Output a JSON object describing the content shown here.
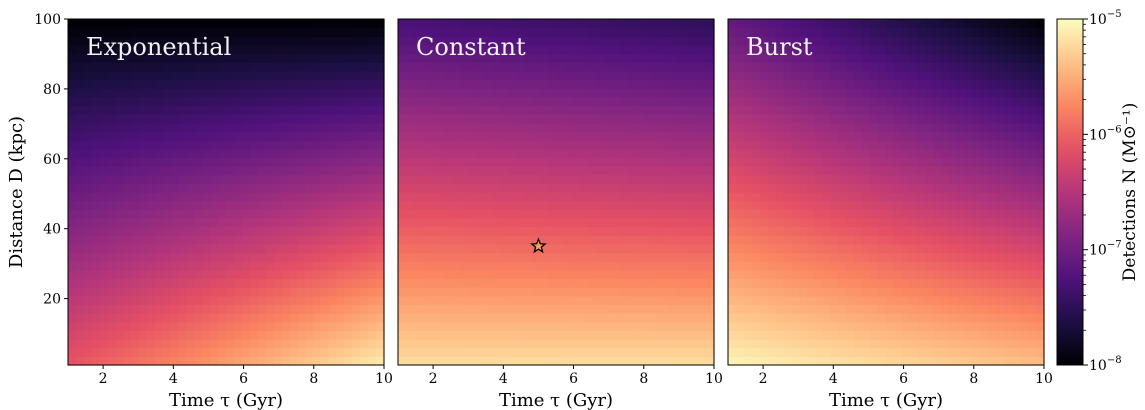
{
  "chart_data": [
    {
      "type": "heatmap",
      "title": "Exponential",
      "xlabel": "Time τ (Gyr)",
      "ylabel": "Distance D (kpc)",
      "xlim": [
        1,
        10
      ],
      "ylim": [
        1,
        100
      ],
      "xticks": [
        2,
        4,
        6,
        8,
        10
      ],
      "yticks": [
        20,
        40,
        60,
        80,
        100
      ],
      "log10_detections_corners": {
        "bottom_left": -6.1,
        "bottom_right": -5.1,
        "top_left": -8.0,
        "top_right": -8.0
      },
      "markers": []
    },
    {
      "type": "heatmap",
      "title": "Constant",
      "xlabel": "Time τ (Gyr)",
      "xlim": [
        1,
        10
      ],
      "ylim": [
        1,
        100
      ],
      "xticks": [
        2,
        4,
        6,
        8,
        10
      ],
      "log10_detections_corners": {
        "bottom_left": -5.2,
        "bottom_right": -5.2,
        "top_left": -7.3,
        "top_right": -7.5
      },
      "markers": [
        {
          "shape": "star",
          "x": 5.0,
          "y": 35
        }
      ]
    },
    {
      "type": "heatmap",
      "title": "Burst",
      "xlabel": "Time τ (Gyr)",
      "xlim": [
        1,
        10
      ],
      "ylim": [
        1,
        100
      ],
      "xticks": [
        2,
        4,
        6,
        8,
        10
      ],
      "log10_detections_corners": {
        "bottom_left": -5.05,
        "bottom_right": -5.4,
        "top_left": -7.1,
        "top_right": -8.0
      },
      "markers": []
    }
  ],
  "colorbar": {
    "label": "Detections N (M⊙⁻¹)",
    "scale": "log",
    "colormap": "magma",
    "range": [
      1e-08,
      1e-05
    ],
    "tick_labels": [
      {
        "base": "10",
        "exp": "−5",
        "value": -5
      },
      {
        "base": "10",
        "exp": "−6",
        "value": -6
      },
      {
        "base": "10",
        "exp": "−7",
        "value": -7
      },
      {
        "base": "10",
        "exp": "−8",
        "value": -8
      }
    ]
  }
}
